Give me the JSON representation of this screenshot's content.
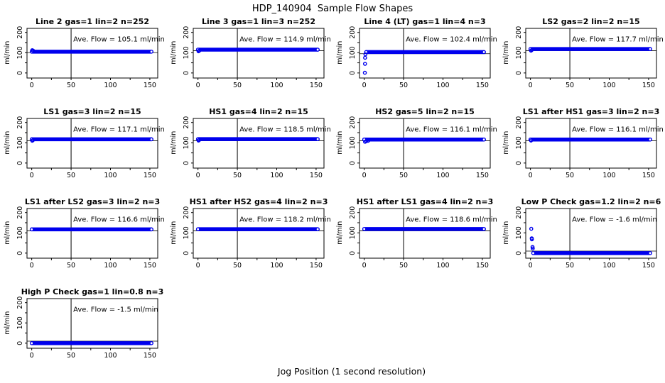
{
  "page": {
    "title": "HDP_140904  Sample Flow Shapes",
    "xlabel": "Jog Position (1 second resolution)"
  },
  "chart_data": {
    "type": "scatter",
    "title": "HDP_140904  Sample Flow Shapes",
    "xlabel": "Jog Position (1 second resolution)",
    "ylabel": "ml/min",
    "layout": {
      "rows": 4,
      "cols": 4,
      "xlim": [
        -6,
        160
      ],
      "ylim": [
        -25,
        220
      ],
      "x_ticks": [
        0,
        25,
        50,
        75,
        100,
        125,
        150
      ],
      "x_labeled_ticks": [
        0,
        50,
        100,
        150
      ],
      "y_ticks": [
        0,
        50,
        100,
        150,
        200
      ],
      "y_labeled_ticks": [
        0,
        100,
        200
      ],
      "vline_x": 50,
      "grid": false,
      "point_color": "#0000EE",
      "line_color": "#000000",
      "background": "#FFFFFF"
    },
    "subplots": [
      {
        "title": "Line 2 gas=1 lin=2 n=252",
        "ave_label": "Ave. Flow =  105.1  ml/min",
        "ave_flow": 105.1,
        "n": 252,
        "band": {
          "x0": 0,
          "x1": 152,
          "y": 105
        },
        "ref_line_y": 100,
        "transients": [
          [
            0.7,
            112
          ],
          [
            1.8,
            110
          ]
        ]
      },
      {
        "title": "Line 3 gas=1 lin=3 n=252",
        "ave_label": "Ave. Flow =  114.9  ml/min",
        "ave_flow": 114.9,
        "n": 252,
        "band": {
          "x0": 0,
          "x1": 152,
          "y": 115
        },
        "ref_line_y": 110,
        "transients": [
          [
            0.7,
            107
          ],
          [
            1.6,
            110
          ]
        ]
      },
      {
        "title": "Line 4 (LT) gas=1 lin=4 n=3",
        "ave_label": "Ave. Flow =  102.4  ml/min",
        "ave_flow": 102.4,
        "n": 3,
        "band": {
          "x0": 2.5,
          "x1": 152,
          "y": 103
        },
        "ref_line_y": 95,
        "transients": [
          [
            0.8,
            1
          ],
          [
            1.0,
            45
          ],
          [
            1.1,
            75
          ],
          [
            1.5,
            92
          ]
        ]
      },
      {
        "title": "LS2 gas=2 lin=2 n=15",
        "ave_label": "Ave. Flow =  117.7  ml/min",
        "ave_flow": 117.7,
        "n": 15,
        "band": {
          "x0": 0,
          "x1": 152,
          "y": 118
        },
        "ref_line_y": 110,
        "transients": [
          [
            0.7,
            110
          ],
          [
            1.6,
            113
          ]
        ]
      },
      {
        "title": "LS1 gas=3 lin=2 n=15",
        "ave_label": "Ave. Flow =  117.1  ml/min",
        "ave_flow": 117.1,
        "n": 15,
        "band": {
          "x0": 0,
          "x1": 152,
          "y": 117
        },
        "ref_line_y": 110,
        "transients": [
          [
            0.7,
            110
          ],
          [
            1.6,
            113
          ]
        ]
      },
      {
        "title": "HS1 gas=4 lin=2 n=15",
        "ave_label": "Ave. Flow =  118.5  ml/min",
        "ave_flow": 118.5,
        "n": 15,
        "band": {
          "x0": 0,
          "x1": 152,
          "y": 118
        },
        "ref_line_y": 110,
        "transients": [
          [
            0.7,
            111
          ],
          [
            1.6,
            114
          ]
        ]
      },
      {
        "title": "HS2 gas=5 lin=2 n=15",
        "ave_label": "Ave. Flow =  116.1  ml/min",
        "ave_flow": 116.1,
        "n": 15,
        "band": {
          "x0": 0,
          "x1": 152,
          "y": 116
        },
        "ref_line_y": 110,
        "transients": [
          [
            1.0,
            105
          ],
          [
            2.6,
            108
          ],
          [
            5.0,
            110
          ]
        ]
      },
      {
        "title": "LS1 after HS1 gas=3 lin=2 n=3",
        "ave_label": "Ave. Flow =  116.1  ml/min",
        "ave_flow": 116.1,
        "n": 3,
        "band": {
          "x0": 0,
          "x1": 152,
          "y": 116
        },
        "ref_line_y": 110,
        "transients": [
          [
            0.7,
            111
          ]
        ]
      },
      {
        "title": "LS1 after LS2 gas=3 lin=2 n=3",
        "ave_label": "Ave. Flow =  116.6  ml/min",
        "ave_flow": 116.6,
        "n": 3,
        "band": {
          "x0": 0,
          "x1": 152,
          "y": 117
        },
        "ref_line_y": 110,
        "transients": []
      },
      {
        "title": "HS1 after HS2 gas=4 lin=2 n=3",
        "ave_label": "Ave. Flow =  118.2  ml/min",
        "ave_flow": 118.2,
        "n": 3,
        "band": {
          "x0": 0,
          "x1": 152,
          "y": 118
        },
        "ref_line_y": 110,
        "transients": []
      },
      {
        "title": "HS1 after LS1 gas=4 lin=2 n=3",
        "ave_label": "Ave. Flow =  118.6  ml/min",
        "ave_flow": 118.6,
        "n": 3,
        "band": {
          "x0": 0,
          "x1": 152,
          "y": 119
        },
        "ref_line_y": 110,
        "transients": []
      },
      {
        "title": "Low P Check gas=1.2 lin=2 n=6",
        "ave_label": "Ave. Flow =  -1.6  ml/min",
        "ave_flow": -1.6,
        "n": 6,
        "band": {
          "x0": 3.5,
          "x1": 152,
          "y": 0
        },
        "ref_line_y": 10,
        "transients": [
          [
            1.0,
            120
          ],
          [
            1.6,
            73
          ],
          [
            1.8,
            68
          ],
          [
            2.6,
            30
          ],
          [
            2.9,
            23
          ]
        ]
      },
      {
        "title": "High P Check gas=1 lin=0.8 n=3",
        "ave_label": "Ave. Flow =  -1.5  ml/min",
        "ave_flow": -1.5,
        "n": 3,
        "band": {
          "x0": 0,
          "x1": 152,
          "y": 0
        },
        "ref_line_y": 10,
        "transients": []
      }
    ]
  }
}
